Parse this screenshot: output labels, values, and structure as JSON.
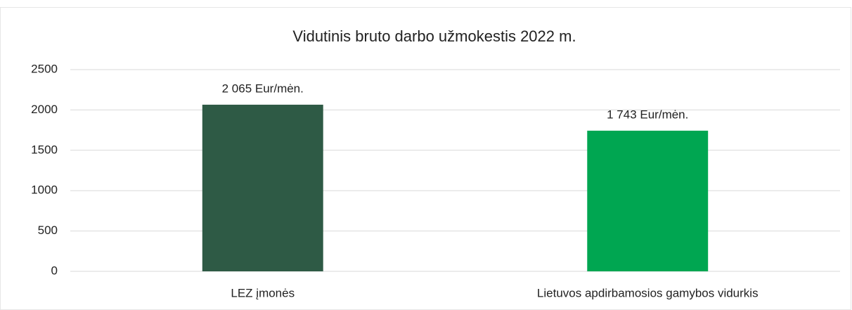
{
  "chart_data": {
    "type": "bar",
    "title": "Vidutinis  bruto darbo užmokestis 2022 m.",
    "categories": [
      "LEZ įmonės",
      "Lietuvos apdirbamosios gamybos vidurkis"
    ],
    "values": [
      2065,
      1743
    ],
    "value_labels": [
      "2 065 Eur/mėn.",
      "1 743 Eur/mėn."
    ],
    "colors": [
      "#2e5a45",
      "#00a651"
    ],
    "ylim": [
      0,
      2500
    ],
    "yticks": [
      0,
      500,
      1000,
      1500,
      2000,
      2500
    ],
    "grid": true
  }
}
